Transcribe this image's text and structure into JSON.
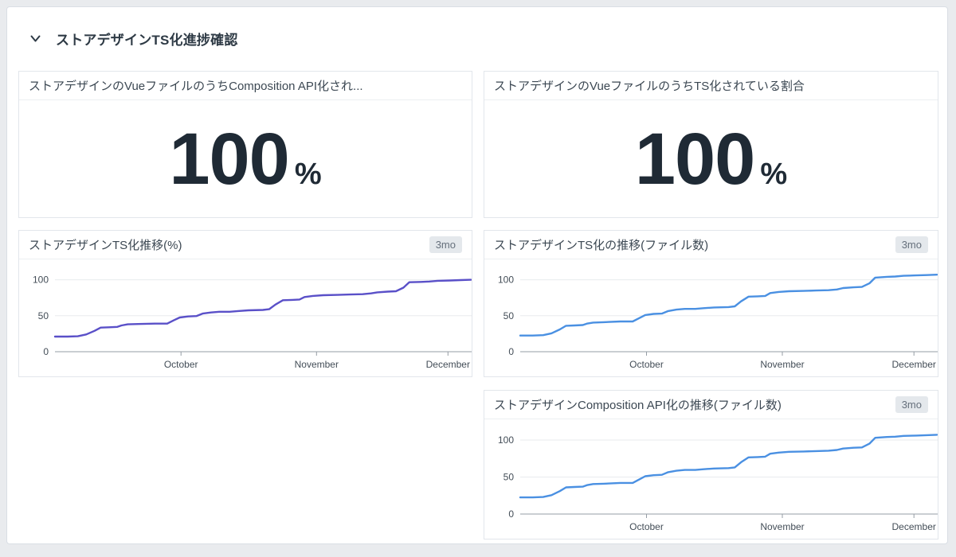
{
  "group": {
    "title": "ストアデザインTS化進捗確認"
  },
  "query_values": [
    {
      "title": "ストアデザインのVueファイルのうちComposition API化され...",
      "value": "100",
      "unit": "%"
    },
    {
      "title": "ストアデザインのVueファイルのうちTS化されている割合",
      "value": "100",
      "unit": "%"
    }
  ],
  "colors": {
    "purple_line": "#5a50c8",
    "blue_line": "#4a90e2",
    "grid_line": "#e8ebee",
    "zero_line": "#949ca4",
    "axis_text": "#434d57",
    "page_bg": "#e9ebee"
  },
  "chart_data": [
    {
      "type": "line",
      "title": "ストアデザインTS化推移(%)",
      "timeframe": "3mo",
      "line_color": "#5a50c8",
      "ylim": [
        0,
        115
      ],
      "yticks": [
        0,
        50,
        100
      ],
      "x_axis_labels": [
        {
          "label": "October",
          "pos": 0.303
        },
        {
          "label": "November",
          "pos": 0.629
        },
        {
          "label": "December",
          "pos": 0.945
        }
      ],
      "x": [
        0,
        0.03,
        0.055,
        0.075,
        0.095,
        0.11,
        0.13,
        0.15,
        0.16,
        0.175,
        0.2,
        0.24,
        0.27,
        0.285,
        0.3,
        0.32,
        0.34,
        0.355,
        0.375,
        0.395,
        0.42,
        0.44,
        0.465,
        0.5,
        0.515,
        0.53,
        0.548,
        0.57,
        0.588,
        0.6,
        0.62,
        0.645,
        0.68,
        0.71,
        0.74,
        0.76,
        0.775,
        0.8,
        0.82,
        0.838,
        0.852,
        0.88,
        0.9,
        0.92,
        0.95,
        0.975,
        1
      ],
      "values": [
        21,
        21,
        21.5,
        24,
        29,
        33.5,
        34,
        34.5,
        36.5,
        38,
        38.5,
        39,
        39,
        43.5,
        47.5,
        49,
        49.5,
        53,
        54.5,
        55.5,
        55.5,
        56.5,
        57.5,
        58,
        59,
        65.5,
        71.5,
        72,
        72.5,
        76,
        77.5,
        78.5,
        79,
        79.5,
        80,
        81,
        82.5,
        83.5,
        84,
        89,
        96.5,
        97,
        97.5,
        98.5,
        99,
        99.5,
        100
      ]
    },
    {
      "type": "line",
      "title": "ストアデザインTS化の推移(ファイル数)",
      "timeframe": "3mo",
      "line_color": "#4a90e2",
      "ylim": [
        0,
        115
      ],
      "yticks": [
        0,
        50,
        100
      ],
      "x_axis_labels": [
        {
          "label": "October",
          "pos": 0.303
        },
        {
          "label": "November",
          "pos": 0.629
        },
        {
          "label": "December",
          "pos": 0.945
        }
      ],
      "x": [
        0,
        0.03,
        0.055,
        0.075,
        0.095,
        0.11,
        0.13,
        0.15,
        0.16,
        0.175,
        0.2,
        0.24,
        0.27,
        0.285,
        0.3,
        0.32,
        0.34,
        0.355,
        0.375,
        0.395,
        0.42,
        0.44,
        0.465,
        0.5,
        0.515,
        0.53,
        0.548,
        0.57,
        0.588,
        0.6,
        0.62,
        0.645,
        0.68,
        0.71,
        0.74,
        0.76,
        0.775,
        0.8,
        0.82,
        0.838,
        0.852,
        0.88,
        0.9,
        0.92,
        0.95,
        0.975,
        1
      ],
      "values": [
        22.5,
        22.5,
        23,
        25.5,
        31,
        36,
        36.5,
        37,
        39,
        40.5,
        41,
        42,
        42,
        46.5,
        51,
        52.5,
        53,
        56.5,
        58.5,
        59.5,
        59.5,
        60.5,
        61.5,
        62,
        63,
        70,
        76.5,
        77,
        77.5,
        81.5,
        83,
        84,
        84.5,
        85,
        85.5,
        86.5,
        88.5,
        89.5,
        90,
        95,
        103,
        104,
        104.5,
        105.5,
        106,
        106.5,
        107
      ]
    },
    {
      "type": "line",
      "title": "ストアデザインComposition API化の推移(ファイル数)",
      "timeframe": "3mo",
      "line_color": "#4a90e2",
      "ylim": [
        0,
        115
      ],
      "yticks": [
        0,
        50,
        100
      ],
      "x_axis_labels": [
        {
          "label": "October",
          "pos": 0.303
        },
        {
          "label": "November",
          "pos": 0.629
        },
        {
          "label": "December",
          "pos": 0.945
        }
      ],
      "x": [
        0,
        0.03,
        0.055,
        0.075,
        0.095,
        0.11,
        0.13,
        0.15,
        0.16,
        0.175,
        0.2,
        0.24,
        0.27,
        0.285,
        0.3,
        0.32,
        0.34,
        0.355,
        0.375,
        0.395,
        0.42,
        0.44,
        0.465,
        0.5,
        0.515,
        0.53,
        0.548,
        0.57,
        0.588,
        0.6,
        0.62,
        0.645,
        0.68,
        0.71,
        0.74,
        0.76,
        0.775,
        0.8,
        0.82,
        0.838,
        0.852,
        0.88,
        0.9,
        0.92,
        0.95,
        0.975,
        1
      ],
      "values": [
        22.5,
        22.5,
        23,
        25.5,
        31,
        36,
        36.5,
        37,
        39,
        40.5,
        41,
        42,
        42,
        46.5,
        51,
        52.5,
        53,
        56.5,
        58.5,
        59.5,
        59.5,
        60.5,
        61.5,
        62,
        63,
        70,
        76.5,
        77,
        77.5,
        81.5,
        83,
        84,
        84.5,
        85,
        85.5,
        86.5,
        88.5,
        89.5,
        90,
        95,
        103,
        104,
        104.5,
        105.5,
        106,
        106.5,
        107
      ]
    }
  ]
}
